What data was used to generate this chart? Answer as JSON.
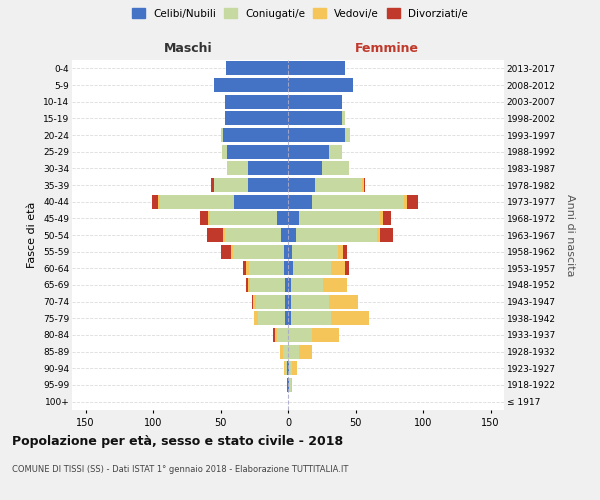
{
  "age_groups": [
    "100+",
    "95-99",
    "90-94",
    "85-89",
    "80-84",
    "75-79",
    "70-74",
    "65-69",
    "60-64",
    "55-59",
    "50-54",
    "45-49",
    "40-44",
    "35-39",
    "30-34",
    "25-29",
    "20-24",
    "15-19",
    "10-14",
    "5-9",
    "0-4"
  ],
  "birth_years": [
    "≤ 1917",
    "1918-1922",
    "1923-1927",
    "1928-1932",
    "1933-1937",
    "1938-1942",
    "1943-1947",
    "1948-1952",
    "1953-1957",
    "1958-1962",
    "1963-1967",
    "1968-1972",
    "1973-1977",
    "1978-1982",
    "1983-1987",
    "1988-1992",
    "1993-1997",
    "1998-2002",
    "2003-2007",
    "2008-2012",
    "2013-2017"
  ],
  "males": {
    "celibi": [
      0,
      1,
      1,
      0,
      0,
      2,
      2,
      2,
      3,
      3,
      5,
      8,
      40,
      30,
      30,
      45,
      48,
      47,
      47,
      55,
      46
    ],
    "coniugati": [
      0,
      0,
      1,
      4,
      8,
      20,
      22,
      26,
      26,
      38,
      42,
      50,
      55,
      25,
      15,
      4,
      2,
      0,
      0,
      0,
      0
    ],
    "vedovi": [
      0,
      0,
      1,
      2,
      2,
      3,
      2,
      2,
      2,
      1,
      1,
      1,
      1,
      0,
      0,
      0,
      0,
      0,
      0,
      0,
      0
    ],
    "divorziati": [
      0,
      0,
      0,
      0,
      1,
      0,
      1,
      1,
      2,
      8,
      12,
      6,
      5,
      2,
      0,
      0,
      0,
      0,
      0,
      0,
      0
    ]
  },
  "females": {
    "nubili": [
      0,
      1,
      1,
      0,
      0,
      2,
      2,
      2,
      4,
      3,
      6,
      8,
      18,
      20,
      25,
      30,
      42,
      40,
      40,
      48,
      42
    ],
    "coniugate": [
      0,
      1,
      2,
      8,
      18,
      30,
      28,
      24,
      28,
      34,
      60,
      60,
      68,
      35,
      20,
      10,
      4,
      2,
      0,
      0,
      0
    ],
    "vedove": [
      0,
      1,
      4,
      10,
      20,
      28,
      22,
      18,
      10,
      4,
      2,
      2,
      2,
      1,
      0,
      0,
      0,
      0,
      0,
      0,
      0
    ],
    "divorziate": [
      0,
      0,
      0,
      0,
      0,
      0,
      0,
      0,
      3,
      3,
      10,
      6,
      8,
      1,
      0,
      0,
      0,
      0,
      0,
      0,
      0
    ]
  },
  "colors": {
    "celibi": "#4472c4",
    "coniugati": "#c5d9a0",
    "vedovi": "#f5c55a",
    "divorziati": "#c0392b"
  },
  "xlim": 160,
  "title": "Popolazione per età, sesso e stato civile - 2018",
  "subtitle": "COMUNE DI TISSI (SS) - Dati ISTAT 1° gennaio 2018 - Elaborazione TUTTITALIA.IT",
  "ylabel": "Fasce di età",
  "ylabel_right": "Anni di nascita",
  "legend_labels": [
    "Celibi/Nubili",
    "Coniugati/e",
    "Vedovi/e",
    "Divorziati/e"
  ],
  "maschi_label": "Maschi",
  "femmine_label": "Femmine",
  "bg_color": "#f0f0f0",
  "plot_bg": "#ffffff"
}
